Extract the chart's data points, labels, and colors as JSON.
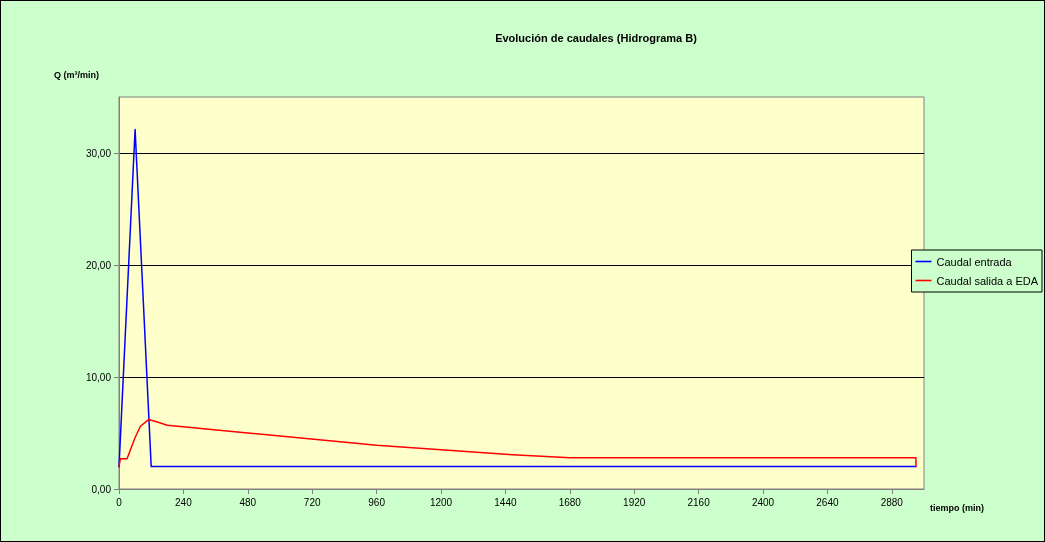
{
  "chart_data": {
    "type": "line",
    "title": "Evolución de caudales (Hidrograma B)",
    "xlabel": "tiempo (min)",
    "ylabel": "Q (m³/min)",
    "xlim": [
      0,
      3000
    ],
    "xticks": [
      0,
      240,
      480,
      720,
      960,
      1200,
      1440,
      1680,
      1920,
      2160,
      2400,
      2640,
      2880
    ],
    "ylim": [
      0,
      35
    ],
    "yticks": [
      {
        "value": 0,
        "label": "0,00"
      },
      {
        "value": 10,
        "label": "10,00"
      },
      {
        "value": 20,
        "label": "20,00"
      },
      {
        "value": 30,
        "label": "30,00"
      }
    ],
    "grid": "y",
    "legend": "right",
    "marker": "none",
    "line_style": "solid",
    "series": [
      {
        "name": "Caudal entrada",
        "color": "#0000ff",
        "x": [
          0,
          60,
          120,
          2970
        ],
        "values": [
          2.0,
          32.1,
          2.0,
          2.0
        ]
      },
      {
        "name": "Caudal salida a EDA",
        "color": "#ff0000",
        "x": [
          0,
          5,
          30,
          60,
          80,
          110,
          140,
          180,
          480,
          960,
          1440,
          1680,
          2970,
          2970
        ],
        "values": [
          2.0,
          2.7,
          2.7,
          4.6,
          5.6,
          6.2,
          6.0,
          5.7,
          5.0,
          3.9,
          3.1,
          2.8,
          2.8,
          2.0
        ]
      }
    ]
  }
}
